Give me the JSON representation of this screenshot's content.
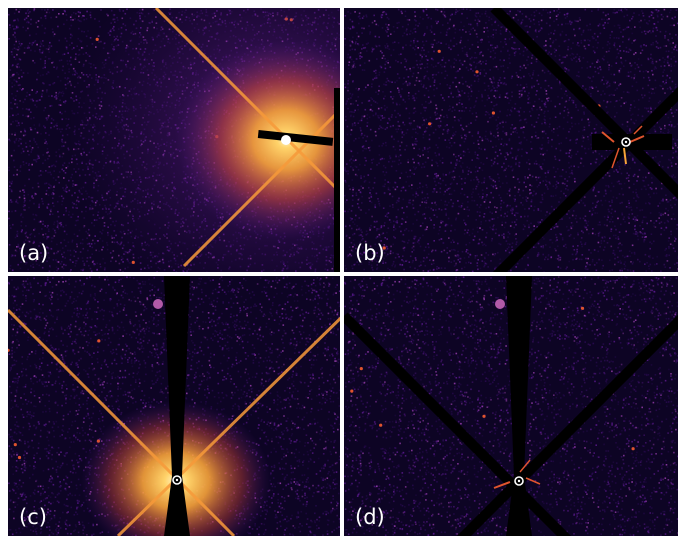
{
  "panels": [
    {
      "id": "a",
      "label": "(a)",
      "marker": false
    },
    {
      "id": "b",
      "label": "(b)",
      "marker": true
    },
    {
      "id": "c",
      "label": "(c)",
      "marker": true
    },
    {
      "id": "d",
      "label": "(d)",
      "marker": true
    }
  ],
  "colors": {
    "background": "#0d0424",
    "noise_dim": "#2a0b52",
    "noise_mid": "#5a1a8c",
    "noise_bright": "#9a3fb0",
    "glow_outer": "#e0542e",
    "glow_mid": "#f8a33a",
    "glow_core": "#fff6c8",
    "mask": "#000000"
  }
}
